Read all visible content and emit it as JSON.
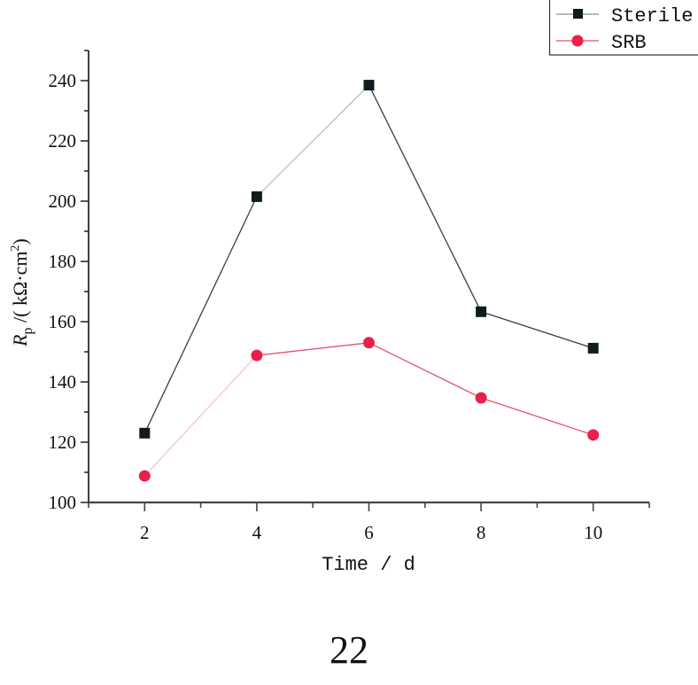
{
  "chart_data": {
    "type": "line",
    "title": "",
    "xlabel": "Time / d",
    "ylabel_main": "R",
    "ylabel_sub": "p",
    "ylabel_unit": " /( kΩ·cm",
    "ylabel_sup": "2",
    "ylabel_close": ")",
    "ylabel": "Rp /( kΩ·cm2)",
    "xlim": [
      1,
      11
    ],
    "ylim": [
      100,
      250
    ],
    "x": [
      2,
      4,
      6,
      8,
      10
    ],
    "x_ticks": [
      2,
      4,
      6,
      8,
      10
    ],
    "y_ticks": [
      100,
      120,
      140,
      160,
      180,
      200,
      220,
      240
    ],
    "grid": false,
    "legend_position": "top-right",
    "series": [
      {
        "name": "Sterile",
        "marker": "square",
        "color": "#0f1b1e",
        "line_color": "#3a3f40",
        "values": [
          123,
          201.5,
          238.5,
          163.3,
          151.2
        ]
      },
      {
        "name": "SRB",
        "marker": "circle",
        "color": "#e8204a",
        "line_color": "#e8506e",
        "values": [
          108.8,
          148.8,
          153,
          134.7,
          122.4
        ]
      }
    ]
  },
  "legend": {
    "items": [
      {
        "label": "Sterile"
      },
      {
        "label": "SRB"
      }
    ]
  },
  "footer": {
    "page_number": "22"
  }
}
